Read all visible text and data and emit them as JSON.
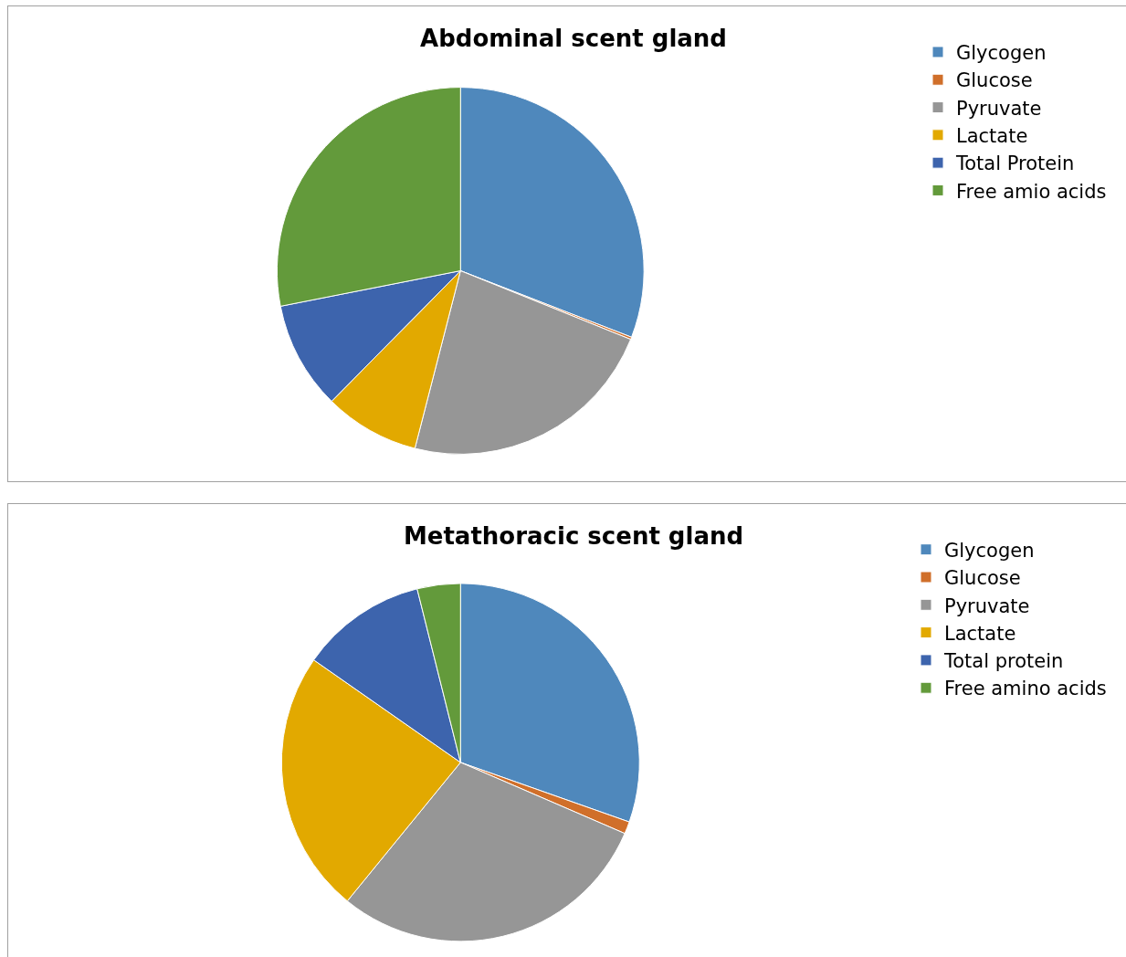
{
  "chart_data": [
    {
      "type": "pie",
      "title": "Abdominal scent gland",
      "categories": [
        "Glycogen",
        "Glucose",
        "Pyruvate",
        "Lactate",
        "Total Protein",
        "Free amio acids"
      ],
      "values": [
        30.9,
        0.2,
        22.9,
        8.4,
        9.5,
        28.1
      ],
      "colors": [
        "#4f88bc",
        "#d06f2a",
        "#969696",
        "#e2a900",
        "#3d64ad",
        "#639a3b"
      ],
      "legend": "top right"
    },
    {
      "type": "pie",
      "title": "Metathoracic scent gland",
      "categories": [
        "Glycogen",
        "Glucose",
        "Pyruvate",
        "Lactate",
        "Total protein",
        "Free amino acids"
      ],
      "values": [
        30.4,
        1.1,
        29.4,
        23.8,
        11.4,
        3.9
      ],
      "colors": [
        "#4f88bc",
        "#d06f2a",
        "#969696",
        "#e2a900",
        "#3d64ad",
        "#639a3b"
      ],
      "legend": "top right"
    }
  ]
}
